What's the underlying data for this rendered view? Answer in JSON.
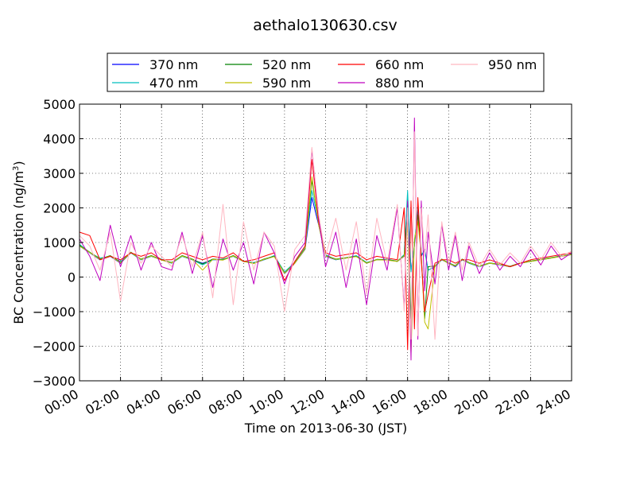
{
  "chart_data": {
    "type": "line",
    "title": "aethalo130630.csv",
    "xlabel": "Time on 2013-06-30 (JST)",
    "ylabel": "BC Concentration (ng/m³)",
    "ylabel_main": "BC Concentration (ng/m",
    "ylabel_sup": "3",
    "ylabel_end": ")",
    "xlim": [
      "00:00",
      "24:00"
    ],
    "ylim": [
      -3000,
      5000
    ],
    "x_ticks": [
      "00:00",
      "02:00",
      "04:00",
      "06:00",
      "08:00",
      "10:00",
      "12:00",
      "14:00",
      "16:00",
      "18:00",
      "20:00",
      "22:00",
      "24:00"
    ],
    "y_ticks": [
      "5000",
      "4000",
      "3000",
      "2000",
      "1000",
      "0",
      "−1000",
      "−2000",
      "−3000"
    ],
    "y_tick_values": [
      5000,
      4000,
      3000,
      2000,
      1000,
      0,
      -1000,
      -2000,
      -3000
    ],
    "grid": true,
    "legend_position": "top",
    "x": [
      "00:00",
      "00:30",
      "01:00",
      "01:30",
      "02:00",
      "02:30",
      "03:00",
      "03:30",
      "04:00",
      "04:30",
      "05:00",
      "05:30",
      "06:00",
      "06:30",
      "07:00",
      "07:30",
      "08:00",
      "08:30",
      "09:00",
      "09:30",
      "10:00",
      "10:30",
      "11:00",
      "11:20",
      "11:40",
      "12:00",
      "12:30",
      "13:00",
      "13:30",
      "14:00",
      "14:30",
      "15:00",
      "15:30",
      "15:50",
      "16:00",
      "16:10",
      "16:20",
      "16:30",
      "16:40",
      "16:50",
      "17:00",
      "17:20",
      "17:40",
      "18:00",
      "18:20",
      "18:40",
      "19:00",
      "19:30",
      "20:00",
      "20:30",
      "21:00",
      "21:30",
      "22:00",
      "22:30",
      "23:00",
      "23:30",
      "24:00"
    ],
    "series": [
      {
        "name": "370 nm",
        "color": "#0000ff",
        "values": [
          900,
          700,
          500,
          600,
          400,
          700,
          500,
          600,
          500,
          400,
          600,
          500,
          400,
          500,
          500,
          600,
          450,
          400,
          500,
          600,
          100,
          400,
          800,
          2300,
          1500,
          600,
          500,
          550,
          600,
          400,
          500,
          500,
          450,
          600,
          1800,
          200,
          900,
          2000,
          600,
          800,
          200,
          300,
          500,
          400,
          300,
          500,
          400,
          300,
          400,
          350,
          300,
          400,
          450,
          500,
          550,
          600,
          650
        ]
      },
      {
        "name": "470 nm",
        "color": "#00bfbf",
        "values": [
          950,
          700,
          550,
          600,
          450,
          700,
          500,
          600,
          520,
          400,
          600,
          500,
          350,
          500,
          520,
          600,
          450,
          420,
          500,
          620,
          150,
          420,
          850,
          2500,
          1600,
          650,
          500,
          550,
          620,
          420,
          500,
          520,
          450,
          650,
          2500,
          150,
          950,
          2100,
          650,
          750,
          200,
          300,
          500,
          420,
          320,
          500,
          400,
          300,
          400,
          360,
          300,
          400,
          450,
          500,
          550,
          620,
          650
        ]
      },
      {
        "name": "520 nm",
        "color": "#008000",
        "values": [
          920,
          720,
          520,
          620,
          420,
          720,
          520,
          620,
          500,
          420,
          620,
          520,
          380,
          520,
          500,
          620,
          460,
          400,
          520,
          600,
          120,
          410,
          820,
          2800,
          1550,
          620,
          520,
          560,
          600,
          410,
          510,
          500,
          460,
          620,
          1900,
          -1200,
          1000,
          1800,
          620,
          -1200,
          300,
          320,
          520,
          400,
          330,
          520,
          420,
          320,
          410,
          370,
          310,
          410,
          460,
          510,
          560,
          610,
          660
        ]
      },
      {
        "name": "590 nm",
        "color": "#bfbf00",
        "values": [
          900,
          710,
          510,
          610,
          410,
          710,
          510,
          610,
          490,
          410,
          610,
          510,
          200,
          510,
          490,
          610,
          450,
          390,
          510,
          590,
          110,
          400,
          810,
          2900,
          1500,
          610,
          510,
          550,
          590,
          400,
          500,
          490,
          450,
          610,
          1500,
          -2200,
          1100,
          1600,
          610,
          -1300,
          -1500,
          310,
          510,
          390,
          320,
          510,
          410,
          310,
          400,
          360,
          300,
          400,
          450,
          500,
          550,
          600,
          650
        ]
      },
      {
        "name": "660 nm",
        "color": "#ff0000",
        "values": [
          1300,
          1200,
          500,
          600,
          500,
          700,
          600,
          700,
          500,
          500,
          700,
          600,
          500,
          600,
          550,
          700,
          450,
          500,
          600,
          700,
          -100,
          450,
          900,
          3400,
          1600,
          700,
          600,
          650,
          700,
          500,
          600,
          550,
          500,
          2000,
          -2100,
          2200,
          -1500,
          2300,
          500,
          -1000,
          -500,
          400,
          500,
          500,
          400,
          500,
          500,
          400,
          500,
          400,
          300,
          400,
          500,
          550,
          600,
          650,
          700
        ]
      },
      {
        "name": "880 nm",
        "color": "#bf00bf",
        "values": [
          1100,
          600,
          -100,
          1500,
          300,
          1200,
          200,
          1000,
          300,
          200,
          1300,
          100,
          1200,
          -300,
          1100,
          200,
          1000,
          -200,
          1300,
          700,
          -200,
          600,
          1000,
          3700,
          1700,
          300,
          1300,
          -300,
          1100,
          -800,
          1200,
          200,
          2000,
          -900,
          2200,
          -2400,
          4600,
          -1800,
          2200,
          -400,
          1300,
          -200,
          1500,
          200,
          1200,
          -100,
          900,
          100,
          700,
          200,
          600,
          300,
          800,
          350,
          900,
          500,
          700
        ]
      },
      {
        "name": "950 nm",
        "color": "#ffb6c1",
        "values": [
          1200,
          900,
          200,
          1300,
          -700,
          1000,
          400,
          900,
          600,
          300,
          1200,
          300,
          1300,
          -600,
          2100,
          -800,
          1600,
          200,
          1300,
          900,
          -1000,
          800,
          1200,
          3750,
          1800,
          600,
          1700,
          200,
          1600,
          -500,
          1700,
          400,
          2100,
          -1000,
          2000,
          -1800,
          4200,
          -1700,
          2000,
          600,
          1800,
          -1800,
          1600,
          400,
          1300,
          200,
          1000,
          300,
          800,
          350,
          700,
          400,
          900,
          500,
          1000,
          600,
          750
        ]
      }
    ]
  }
}
